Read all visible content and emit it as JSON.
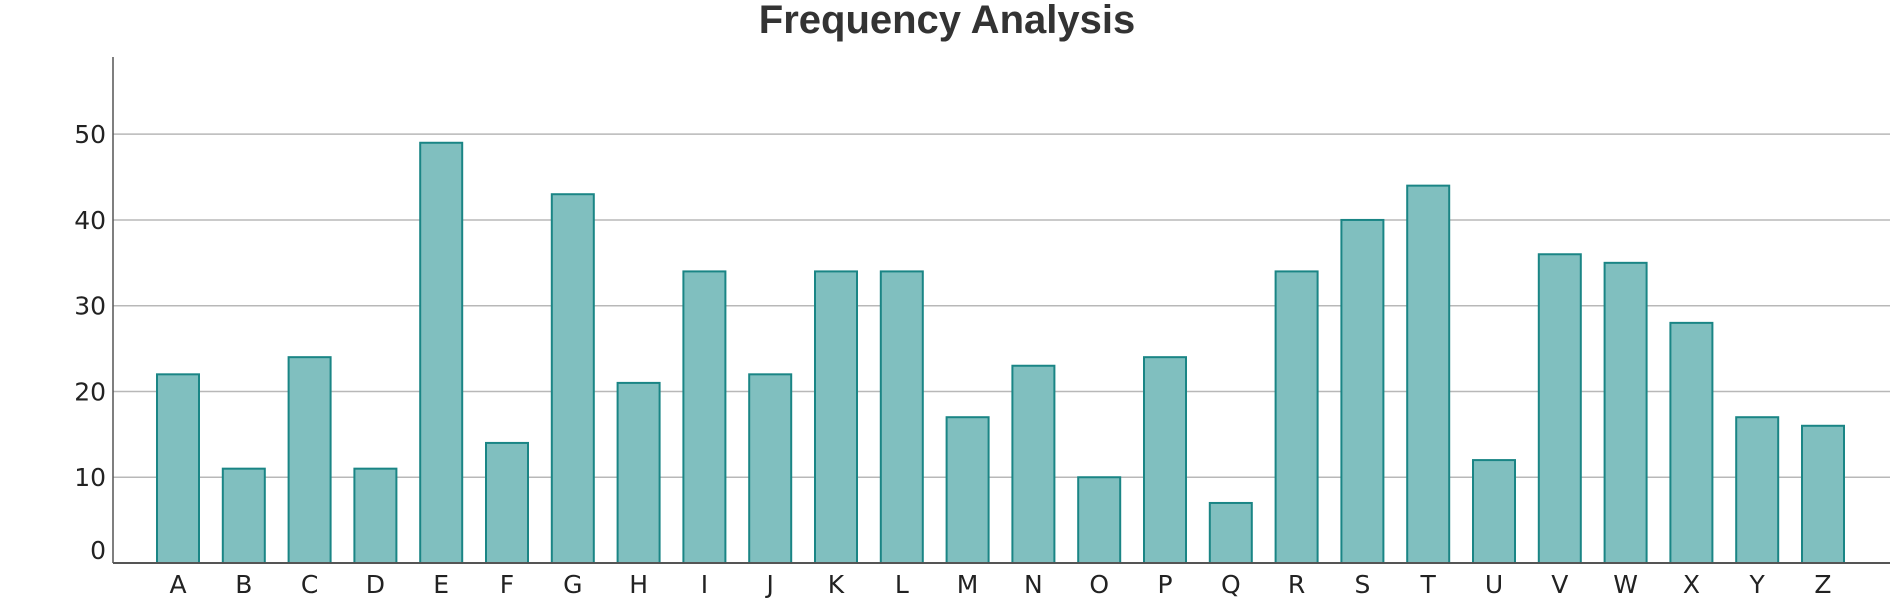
{
  "chart_data": {
    "type": "bar",
    "title": "Frequency Analysis",
    "xlabel": "",
    "ylabel": "",
    "categories": [
      "A",
      "B",
      "C",
      "D",
      "E",
      "F",
      "G",
      "H",
      "I",
      "J",
      "K",
      "L",
      "M",
      "N",
      "O",
      "P",
      "Q",
      "R",
      "S",
      "T",
      "U",
      "V",
      "W",
      "X",
      "Y",
      "Z"
    ],
    "values": [
      22,
      11,
      24,
      11,
      49,
      14,
      43,
      21,
      34,
      22,
      34,
      34,
      17,
      23,
      10,
      24,
      7,
      34,
      40,
      44,
      12,
      36,
      35,
      28,
      17,
      16
    ],
    "ylim": [
      0,
      59
    ],
    "yticks": [
      0,
      10,
      20,
      30,
      40,
      50
    ],
    "grid": "horizontal",
    "colors": {
      "bar_fill": "#80bfbf",
      "bar_stroke": "#1a8585",
      "grid": "#b8b8b8",
      "axis": "#555555",
      "title": "#333333"
    }
  }
}
